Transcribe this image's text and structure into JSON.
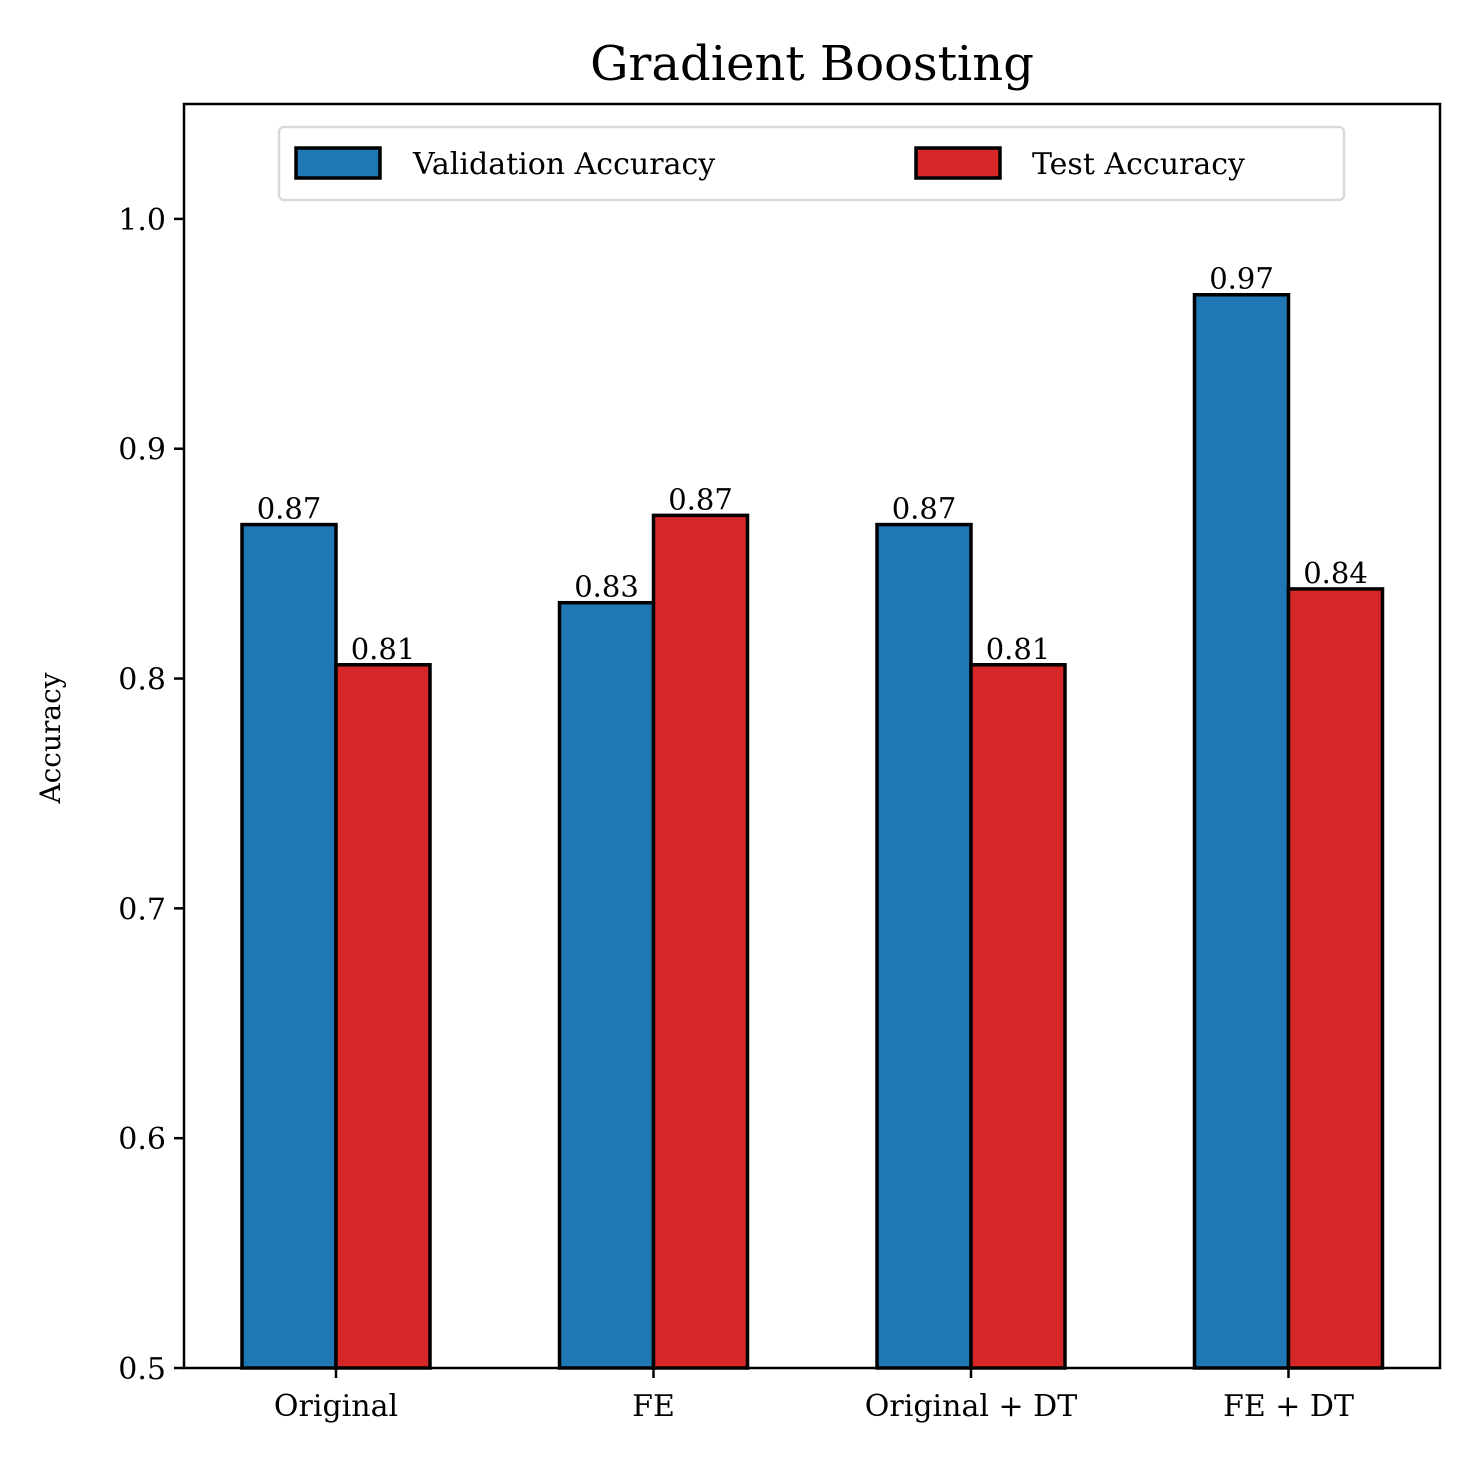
{
  "chart_data": {
    "type": "bar",
    "title": "Gradient Boosting",
    "xlabel": "",
    "ylabel": "Accuracy",
    "categories": [
      "Original",
      "FE",
      "Original + DT",
      "FE + DT"
    ],
    "series": [
      {
        "name": "Validation Accuracy",
        "color": "#1f77b4",
        "values": [
          0.867,
          0.833,
          0.867,
          0.967
        ],
        "labels": [
          "0.87",
          "0.83",
          "0.87",
          "0.97"
        ]
      },
      {
        "name": "Test Accuracy",
        "color": "#d62728",
        "values": [
          0.806,
          0.871,
          0.806,
          0.839
        ],
        "labels": [
          "0.81",
          "0.87",
          "0.81",
          "0.84"
        ]
      }
    ],
    "ylim": [
      0.5,
      1.05
    ],
    "yticks": [
      0.5,
      0.6,
      0.7,
      0.8,
      0.9,
      1.0
    ],
    "ytick_labels": [
      "0.5",
      "0.6",
      "0.7",
      "0.8",
      "0.9",
      "1.0"
    ],
    "grid": false,
    "legend_position": "top-center"
  }
}
